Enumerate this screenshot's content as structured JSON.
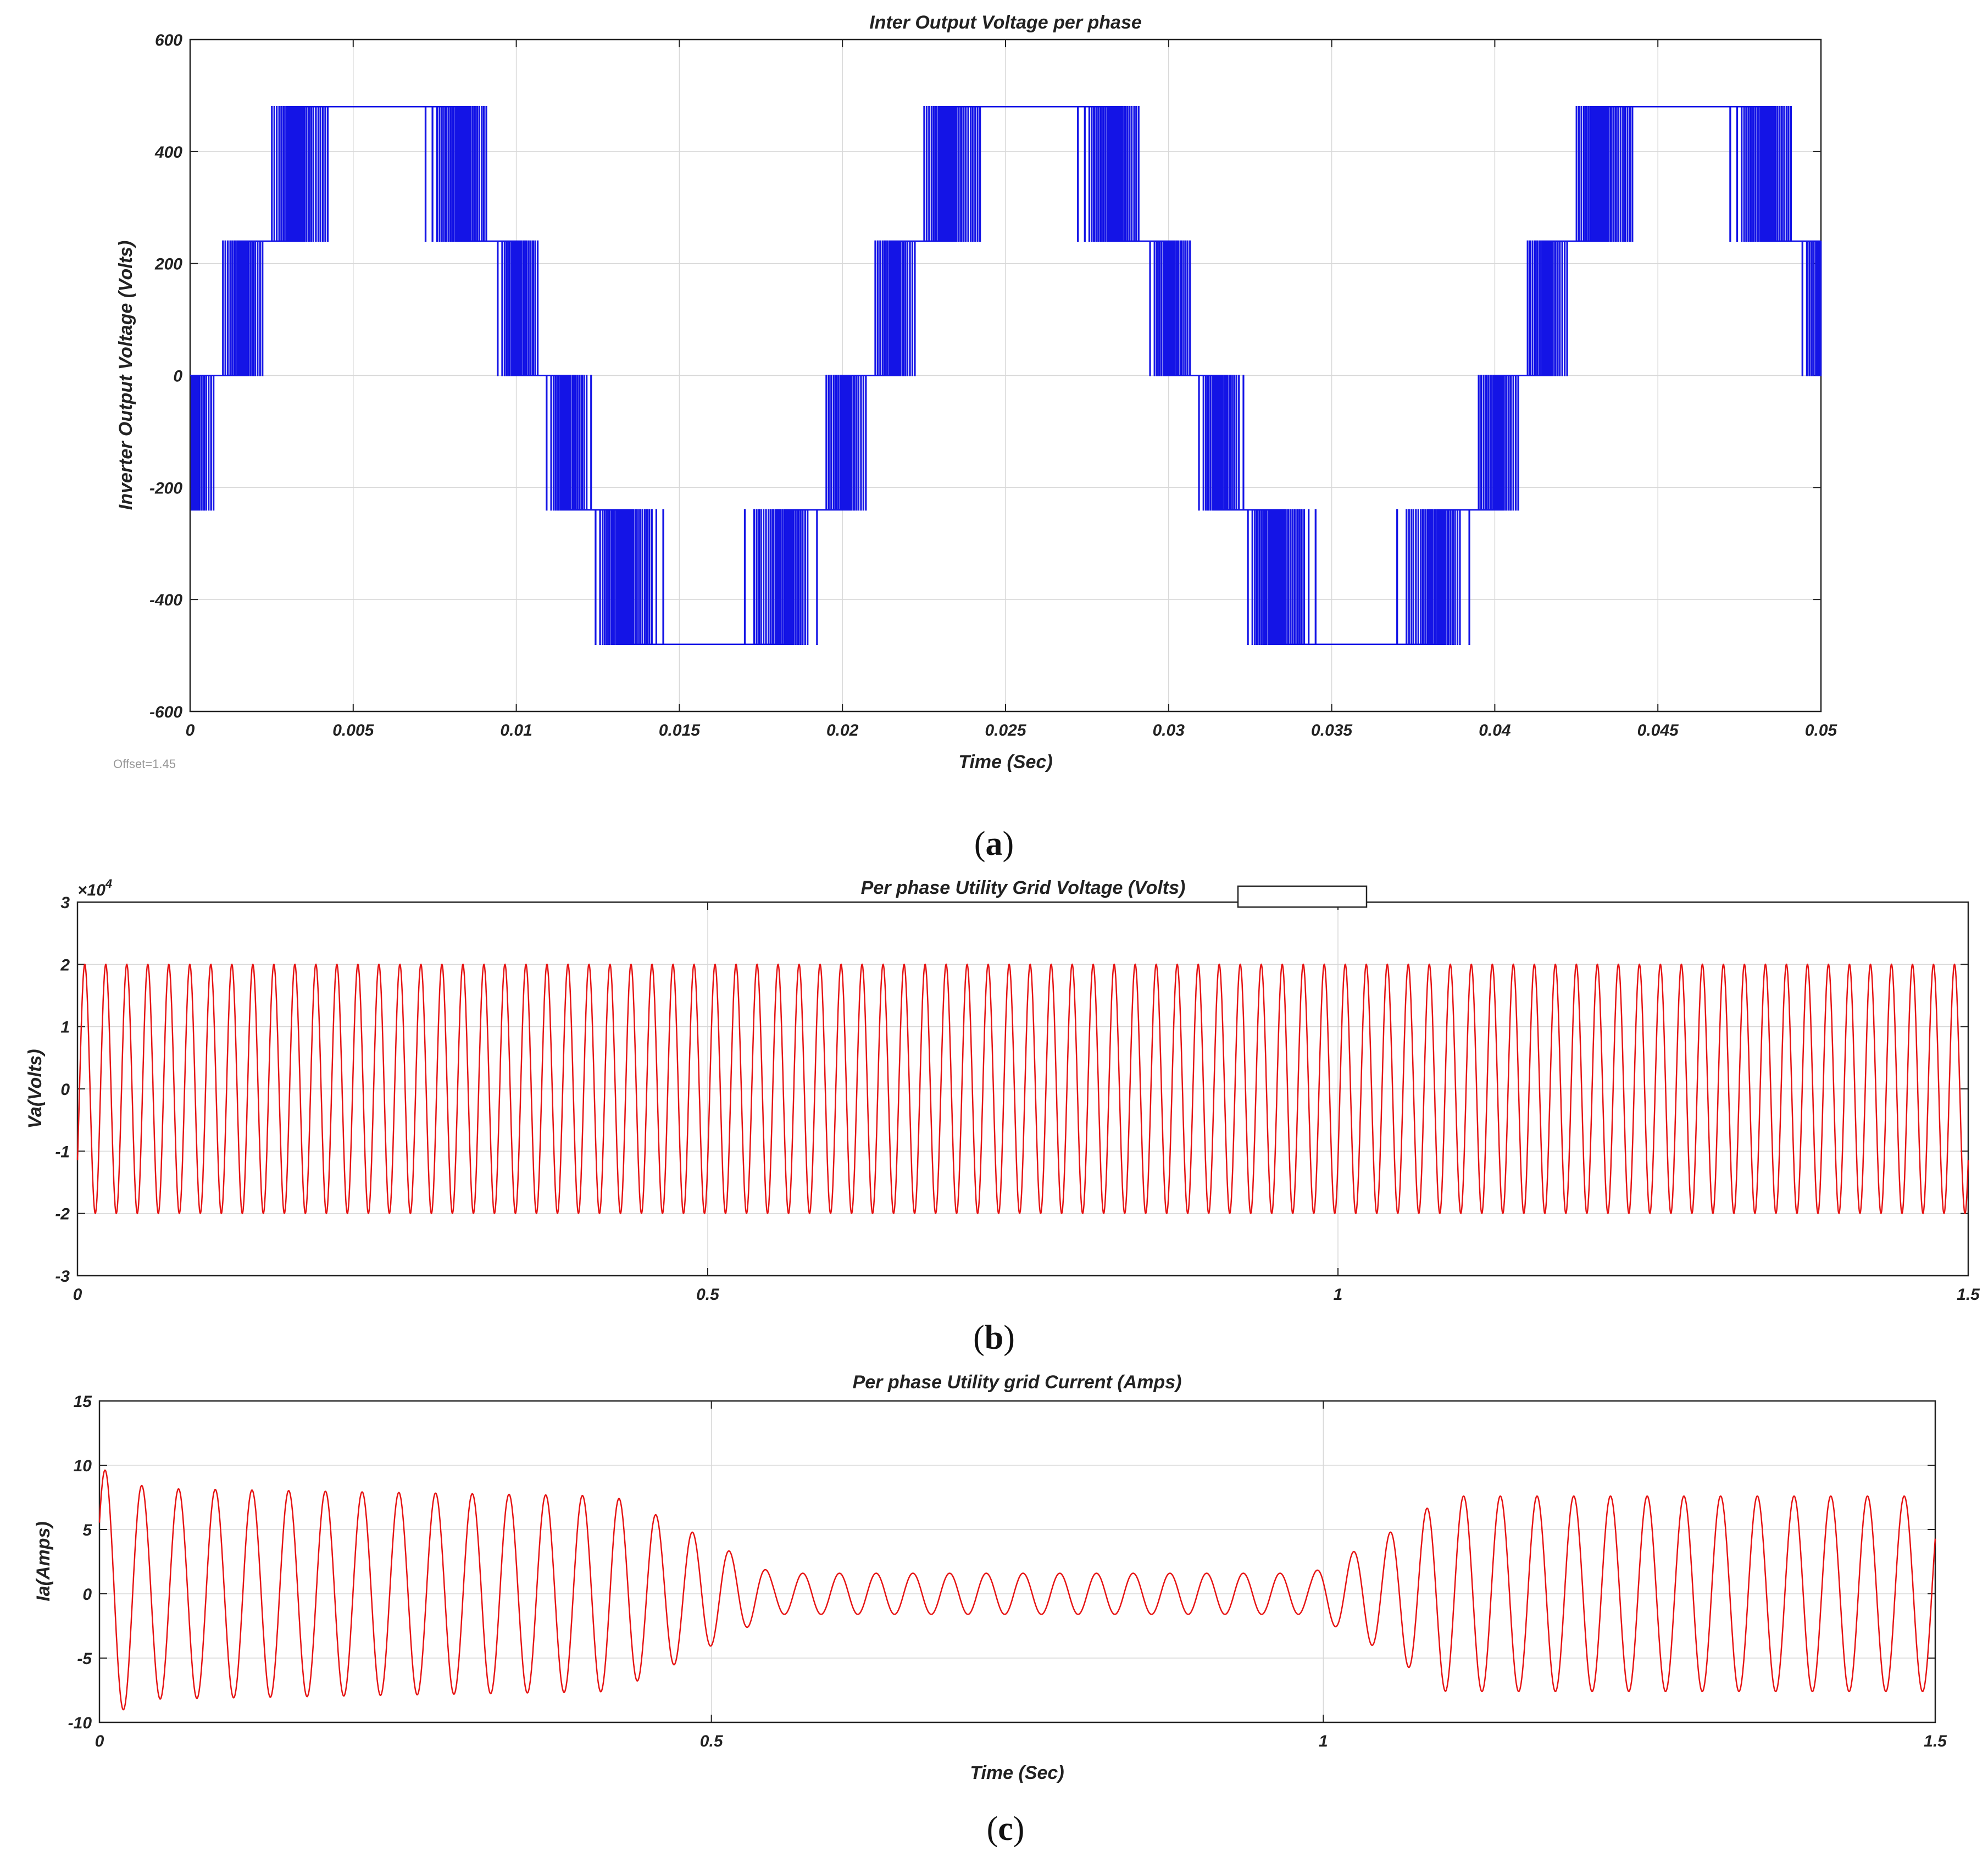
{
  "chart_data": [
    {
      "id": "a",
      "type": "line",
      "title": "Inter Output Voltage per phase",
      "xlabel": "Time (Sec)",
      "ylabel": "Inverter Output Voltage (Volts)",
      "xlim": [
        0,
        0.05
      ],
      "ylim": [
        -600,
        600
      ],
      "xticks": [
        0,
        0.005,
        0.01,
        0.015,
        0.02,
        0.025,
        0.03,
        0.035,
        0.04,
        0.045,
        0.05
      ],
      "xtick_labels": [
        "0",
        "0.005",
        "0.01",
        "0.015",
        "0.02",
        "0.025",
        "0.03",
        "0.035",
        "0.04",
        "0.045",
        "0.05"
      ],
      "yticks": [
        -600,
        -400,
        -200,
        0,
        200,
        400,
        600
      ],
      "ytick_labels": [
        "-600",
        "-400",
        "-200",
        "0",
        "200",
        "400",
        "600"
      ],
      "grid": true,
      "series": [
        {
          "name": "Inverter output voltage",
          "color": "#1414e6",
          "waveform": "multilevel_pwm",
          "fundamental_hz": 50,
          "level_step_v": 240,
          "levels_v": [
            -480,
            -240,
            0,
            240,
            480
          ]
        }
      ],
      "annotation": "Offset=1.45",
      "caption": "a"
    },
    {
      "id": "b",
      "type": "line",
      "title": "Per phase Utility Grid Voltage (Volts)",
      "xlabel": "",
      "ylabel": "Va(Volts)",
      "y_multiplier": "×10",
      "y_multiplier_exp": "4",
      "xlim": [
        0,
        1.5
      ],
      "ylim": [
        -3,
        3
      ],
      "xticks": [
        0,
        0.5,
        1,
        1.5
      ],
      "xtick_labels": [
        "0",
        "0.5",
        "1",
        "1.5"
      ],
      "yticks": [
        -3,
        -2,
        -1,
        0,
        1,
        2,
        3
      ],
      "ytick_labels": [
        "-3",
        "-2",
        "-1",
        "0",
        "1",
        "2",
        "3"
      ],
      "grid": true,
      "series": [
        {
          "name": "Va",
          "color": "#e61414",
          "waveform": "sine",
          "amplitude": 2.0,
          "cycles": 90,
          "phase_deg": -35
        }
      ],
      "caption": "b"
    },
    {
      "id": "c",
      "type": "line",
      "title": "Per phase Utility grid Current (Amps)",
      "xlabel": "Time (Sec)",
      "ylabel": "Ia(Amps)",
      "xlim": [
        0,
        1.5
      ],
      "ylim": [
        -10,
        15
      ],
      "xticks": [
        0,
        0.5,
        1,
        1.5
      ],
      "xtick_labels": [
        "0",
        "0.5",
        "1",
        "1.5"
      ],
      "yticks": [
        -10,
        -5,
        0,
        5,
        10,
        15
      ],
      "ytick_labels": [
        "-10",
        "-5",
        "0",
        "5",
        "10",
        "15"
      ],
      "grid": true,
      "series": [
        {
          "name": "Ia",
          "color": "#e61414",
          "waveform": "sine_with_envelope",
          "cycles": 50,
          "envelope_points": [
            {
              "t": 0.0,
              "amp": 9.8
            },
            {
              "t": 0.04,
              "amp": 8.2
            },
            {
              "t": 0.42,
              "amp": 7.6
            },
            {
              "t": 0.47,
              "amp": 5.5
            },
            {
              "t": 0.55,
              "amp": 1.6
            },
            {
              "t": 0.99,
              "amp": 1.6
            },
            {
              "t": 1.05,
              "amp": 4.5
            },
            {
              "t": 1.1,
              "amp": 7.6
            },
            {
              "t": 1.5,
              "amp": 7.6
            }
          ]
        }
      ],
      "caption": "c"
    }
  ]
}
